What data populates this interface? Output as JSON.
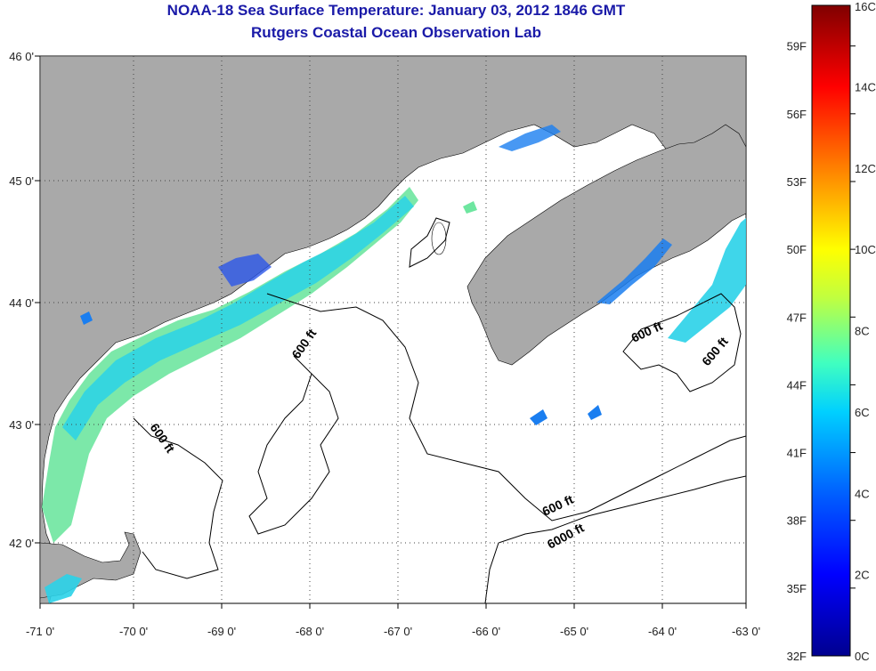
{
  "title": {
    "line1": "NOAA-18 Sea Surface Temperature:  January 03, 2012 1846 GMT",
    "line2": "Rutgers Coastal Ocean Observation Lab"
  },
  "map": {
    "lon_ticks": [
      "-71 0'",
      "-70 0'",
      "-69 0'",
      "-68 0'",
      "-67 0'",
      "-66 0'",
      "-65 0'",
      "-64 0'",
      "-63 0'"
    ],
    "lat_ticks": [
      "46 0'",
      "45 0'",
      "44 0'",
      "43 0'",
      "42 0'"
    ],
    "contour_labels": [
      "600 ft",
      "600 ft",
      "600 ft",
      "600 ft",
      "600 ft",
      "6000 ft"
    ]
  },
  "colorbar": {
    "fahrenheit": [
      "59F",
      "56F",
      "53F",
      "50F",
      "47F",
      "44F",
      "41F",
      "38F",
      "35F",
      "32F"
    ],
    "celsius": [
      "16C",
      "14C",
      "12C",
      "10C",
      "8C",
      "6C",
      "4C",
      "2C",
      "0C"
    ],
    "colors": [
      "#00008f",
      "#0000ff",
      "#0080ff",
      "#00ffff",
      "#80ff80",
      "#ffff00",
      "#ff8000",
      "#ff0000",
      "#800000"
    ]
  },
  "colors": {
    "land": "#a9a9a9",
    "title": "#1a1aa8"
  }
}
